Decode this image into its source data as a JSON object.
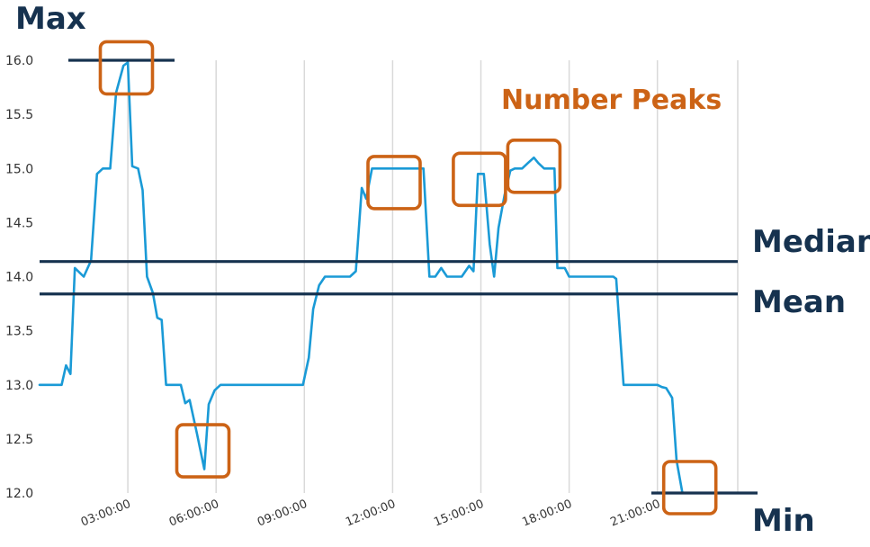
{
  "chart_data": {
    "type": "line",
    "ylim": [
      12.0,
      16.0
    ],
    "yticks": [
      "16.0",
      "15.5",
      "15.0",
      "14.5",
      "14.0",
      "13.5",
      "13.0",
      "12.5",
      "12.0"
    ],
    "xticks": [
      "03:00:00",
      "06:00:00",
      "09:00:00",
      "12:00:00",
      "15:00:00",
      "18:00:00",
      "21:00:00"
    ],
    "grid": "vertical",
    "line_color": "#1a9ad6",
    "series": [
      {
        "points": [
          [
            "00:00",
            13.0
          ],
          [
            "00:45",
            13.0
          ],
          [
            "00:54",
            13.18
          ],
          [
            "01:03",
            13.1
          ],
          [
            "01:12",
            14.08
          ],
          [
            "01:30",
            14.0
          ],
          [
            "01:45",
            14.15
          ],
          [
            "01:57",
            14.95
          ],
          [
            "02:09",
            15.0
          ],
          [
            "02:24",
            15.0
          ],
          [
            "02:36",
            15.7
          ],
          [
            "02:51",
            15.95
          ],
          [
            "03:00",
            15.98
          ],
          [
            "03:09",
            15.02
          ],
          [
            "03:21",
            15.0
          ],
          [
            "03:30",
            14.8
          ],
          [
            "03:39",
            14.0
          ],
          [
            "03:51",
            13.85
          ],
          [
            "04:00",
            13.62
          ],
          [
            "04:09",
            13.6
          ],
          [
            "04:18",
            13.0
          ],
          [
            "04:36",
            13.0
          ],
          [
            "04:48",
            13.0
          ],
          [
            "04:57",
            12.83
          ],
          [
            "05:06",
            12.86
          ],
          [
            "05:21",
            12.55
          ],
          [
            "05:36",
            12.22
          ],
          [
            "05:45",
            12.82
          ],
          [
            "05:57",
            12.95
          ],
          [
            "06:09",
            13.0
          ],
          [
            "08:00",
            13.0
          ],
          [
            "08:30",
            13.0
          ],
          [
            "08:57",
            13.0
          ],
          [
            "09:09",
            13.25
          ],
          [
            "09:18",
            13.7
          ],
          [
            "09:30",
            13.92
          ],
          [
            "09:42",
            14.0
          ],
          [
            "10:03",
            14.0
          ],
          [
            "10:33",
            14.0
          ],
          [
            "10:45",
            14.05
          ],
          [
            "10:57",
            14.82
          ],
          [
            "11:06",
            14.72
          ],
          [
            "11:18",
            15.0
          ],
          [
            "11:30",
            15.0
          ],
          [
            "12:30",
            15.0
          ],
          [
            "13:03",
            15.0
          ],
          [
            "13:15",
            14.0
          ],
          [
            "13:27",
            14.0
          ],
          [
            "13:39",
            14.08
          ],
          [
            "13:51",
            14.0
          ],
          [
            "14:09",
            14.0
          ],
          [
            "14:21",
            14.0
          ],
          [
            "14:36",
            14.1
          ],
          [
            "14:45",
            14.05
          ],
          [
            "14:54",
            14.95
          ],
          [
            "15:06",
            14.95
          ],
          [
            "15:18",
            14.3
          ],
          [
            "15:27",
            14.0
          ],
          [
            "15:36",
            14.45
          ],
          [
            "15:48",
            14.75
          ],
          [
            "16:00",
            14.98
          ],
          [
            "16:09",
            15.0
          ],
          [
            "16:24",
            15.0
          ],
          [
            "16:36",
            15.05
          ],
          [
            "16:48",
            15.1
          ],
          [
            "16:57",
            15.05
          ],
          [
            "17:09",
            15.0
          ],
          [
            "17:30",
            15.0
          ],
          [
            "17:36",
            14.08
          ],
          [
            "17:51",
            14.08
          ],
          [
            "18:00",
            14.0
          ],
          [
            "18:30",
            14.0
          ],
          [
            "19:00",
            14.0
          ],
          [
            "19:30",
            14.0
          ],
          [
            "19:36",
            13.98
          ],
          [
            "19:51",
            13.0
          ],
          [
            "20:30",
            13.0
          ],
          [
            "21:00",
            13.0
          ],
          [
            "21:09",
            12.98
          ],
          [
            "21:18",
            12.97
          ],
          [
            "21:30",
            12.88
          ],
          [
            "21:39",
            12.3
          ],
          [
            "21:51",
            12.0
          ],
          [
            "22:00",
            12.0
          ]
        ]
      }
    ],
    "reference_lines": [
      {
        "label": "Max",
        "value": 16.0,
        "color": "#16324f"
      },
      {
        "label": "Median",
        "value": 14.14,
        "color": "#16324f"
      },
      {
        "label": "Mean",
        "value": 13.84,
        "color": "#16324f"
      },
      {
        "label": "Min",
        "value": 12.0,
        "color": "#16324f"
      }
    ],
    "peaks_label": "Number Peaks",
    "peaks_color": "#cc6316",
    "highlight_boxes": [
      {
        "time": "02:57",
        "value": 15.93
      },
      {
        "time": "05:33",
        "value": 12.39
      },
      {
        "time": "12:03",
        "value": 14.87
      },
      {
        "time": "14:57",
        "value": 14.9
      },
      {
        "time": "16:48",
        "value": 15.02
      },
      {
        "time": "22:06",
        "value": 12.05
      }
    ]
  }
}
